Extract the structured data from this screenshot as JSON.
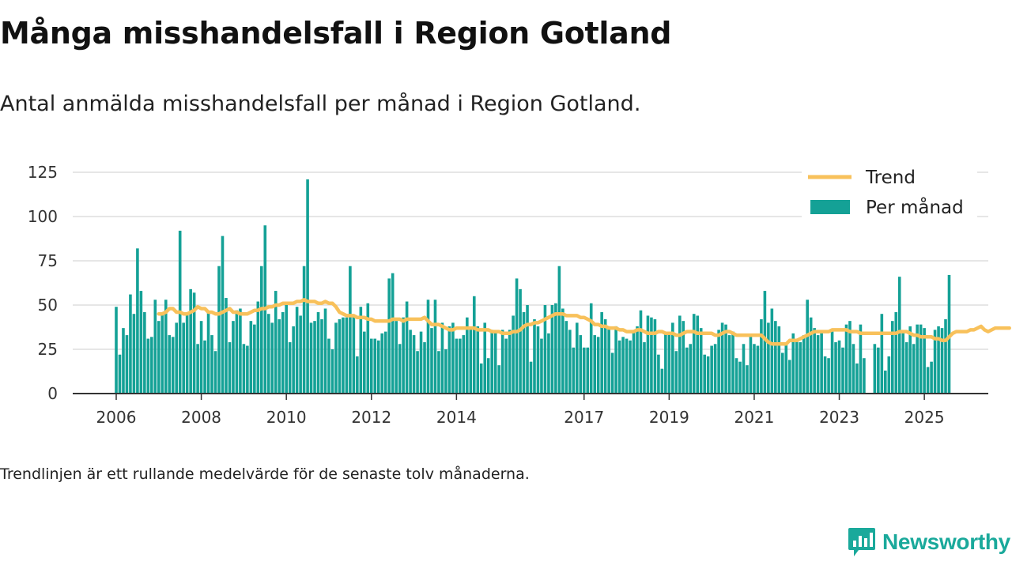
{
  "header": {
    "title": "Många misshandelsfall i Region Gotland",
    "subtitle": "Antal anmälda misshandelsfall per månad i Region Gotland."
  },
  "footer": {
    "note": "Trendlinjen är ett rullande medelvärde för de senaste tolv månaderna.",
    "brand": "Newsworthy"
  },
  "colors": {
    "bar": "#14a196",
    "trend": "#f8c15b",
    "grid": "#dddddd",
    "axis": "#333333",
    "brand": "#1aa99b"
  },
  "chart_data": {
    "type": "bar",
    "x_start": "2006-01",
    "x_ticks": [
      "2006",
      "2008",
      "2010",
      "2012",
      "2014",
      "2017",
      "2019",
      "2021",
      "2023",
      "2025"
    ],
    "y_ticks": [
      0,
      25,
      50,
      75,
      100,
      125
    ],
    "ylim": [
      0,
      130
    ],
    "grid": true,
    "legend_position": "top-right",
    "series": [
      {
        "name": "Per månad",
        "type": "bar",
        "values": [
          49,
          22,
          37,
          33,
          56,
          45,
          82,
          58,
          46,
          31,
          32,
          53,
          41,
          45,
          53,
          33,
          32,
          40,
          92,
          40,
          45,
          59,
          57,
          28,
          41,
          30,
          46,
          33,
          24,
          72,
          89,
          54,
          29,
          41,
          47,
          48,
          28,
          27,
          41,
          39,
          52,
          72,
          95,
          45,
          40,
          58,
          42,
          46,
          50,
          29,
          38,
          49,
          44,
          72,
          121,
          40,
          41,
          46,
          42,
          48,
          31,
          25,
          40,
          42,
          43,
          43,
          72,
          44,
          21,
          49,
          35,
          51,
          31,
          31,
          30,
          34,
          35,
          65,
          68,
          41,
          28,
          43,
          52,
          36,
          33,
          24,
          35,
          29,
          53,
          37,
          53,
          24,
          40,
          25,
          38,
          40,
          31,
          31,
          33,
          43,
          37,
          55,
          38,
          17,
          40,
          20,
          36,
          35,
          16,
          36,
          31,
          36,
          44,
          65,
          59,
          46,
          50,
          18,
          42,
          38,
          31,
          50,
          34,
          50,
          51,
          72,
          48,
          41,
          36,
          26,
          40,
          33,
          26,
          26,
          51,
          33,
          32,
          46,
          42,
          38,
          23,
          38,
          30,
          32,
          31,
          30,
          35,
          38,
          47,
          29,
          44,
          43,
          42,
          22,
          14,
          35,
          34,
          40,
          24,
          44,
          41,
          26,
          28,
          45,
          44,
          37,
          22,
          21,
          27,
          28,
          36,
          40,
          39,
          33,
          35,
          20,
          18,
          28,
          16,
          32,
          28,
          27,
          42,
          58,
          40,
          48,
          41,
          38,
          23,
          29,
          19,
          34,
          30,
          29,
          33,
          53,
          43,
          37,
          33,
          35,
          21,
          20,
          35,
          29,
          30,
          26,
          39,
          41,
          28,
          17,
          39,
          20,
          0,
          0,
          28,
          26,
          45,
          13,
          21,
          41,
          46,
          66,
          35,
          29,
          38,
          28,
          39,
          39,
          37,
          15,
          18,
          36,
          38,
          37,
          42,
          67
        ],
        "color": "#14a196"
      },
      {
        "name": "Trend",
        "type": "line",
        "start_index": 12,
        "values": [
          45,
          45,
          46,
          48,
          48,
          46,
          46,
          45,
          45,
          46,
          47,
          49,
          48,
          48,
          46,
          46,
          45,
          45,
          46,
          47,
          48,
          46,
          46,
          45,
          45,
          45,
          46,
          47,
          47,
          48,
          48,
          49,
          49,
          50,
          50,
          51,
          51,
          51,
          51,
          52,
          52,
          53,
          52,
          52,
          52,
          51,
          51,
          52,
          51,
          51,
          49,
          46,
          45,
          44,
          44,
          44,
          43,
          43,
          43,
          42,
          42,
          41,
          41,
          41,
          41,
          41,
          42,
          42,
          42,
          41,
          42,
          42,
          42,
          42,
          42,
          43,
          41,
          39,
          39,
          39,
          38,
          37,
          36,
          36,
          37,
          37,
          37,
          37,
          37,
          37,
          36,
          36,
          36,
          36,
          35,
          35,
          35,
          34,
          34,
          34,
          35,
          35,
          36,
          38,
          39,
          39,
          40,
          40,
          41,
          42,
          43,
          44,
          45,
          45,
          45,
          44,
          44,
          44,
          44,
          43,
          43,
          42,
          41,
          39,
          39,
          38,
          38,
          37,
          37,
          37,
          36,
          36,
          35,
          35,
          35,
          36,
          36,
          35,
          34,
          34,
          34,
          35,
          35,
          34,
          34,
          34,
          33,
          33,
          34,
          35,
          35,
          35,
          34,
          34,
          34,
          34,
          34,
          33,
          33,
          34,
          35,
          35,
          34,
          33,
          33,
          33,
          33,
          33,
          33,
          33,
          33,
          31,
          29,
          28,
          28,
          28,
          28,
          28,
          30,
          30,
          30,
          31,
          32,
          33,
          34,
          35,
          35,
          35,
          35,
          35,
          36,
          36,
          36,
          36,
          36,
          35,
          35,
          35,
          34,
          34,
          34,
          34,
          34,
          34,
          34,
          34,
          34,
          34,
          34,
          35,
          35,
          35,
          34,
          33,
          33,
          32,
          32,
          32,
          32,
          31,
          31,
          30,
          30,
          32,
          34,
          35,
          35,
          35,
          35,
          36,
          36,
          37,
          38,
          36,
          35,
          36,
          37,
          37,
          37,
          37,
          37
        ],
        "color": "#f8c15b"
      }
    ]
  }
}
